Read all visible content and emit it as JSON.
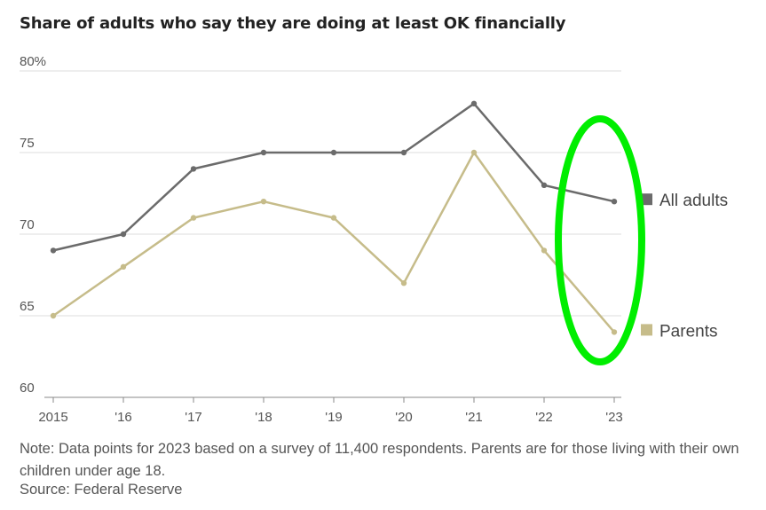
{
  "chart_data": {
    "type": "line",
    "title": "Share of adults who say they are doing at least OK financially",
    "x": [
      "2015",
      "'16",
      "'17",
      "'18",
      "'19",
      "'20",
      "'21",
      "'22",
      "'23"
    ],
    "ylim": [
      60,
      80
    ],
    "yticks": [
      "80%",
      "75",
      "70",
      "65",
      "60"
    ],
    "ytick_values": [
      80,
      75,
      70,
      65,
      60
    ],
    "series": [
      {
        "name": "All adults",
        "color": "#6b6b6b",
        "values": [
          69,
          70,
          74,
          75,
          75,
          75,
          78,
          73,
          72
        ]
      },
      {
        "name": "Parents",
        "color": "#c6bc8a",
        "values": [
          65,
          68,
          71,
          72,
          71,
          67,
          75,
          69,
          64
        ]
      }
    ],
    "annotation": {
      "shape": "ellipse",
      "color": "#00ee00",
      "target": "'22-'23 data points"
    },
    "grid": true,
    "legend": "right, at line ends"
  },
  "note": "Note: Data points for 2023 based on a survey of 11,400 respondents. Parents are for those living with their own children under age 18.",
  "source": "Source: Federal Reserve"
}
